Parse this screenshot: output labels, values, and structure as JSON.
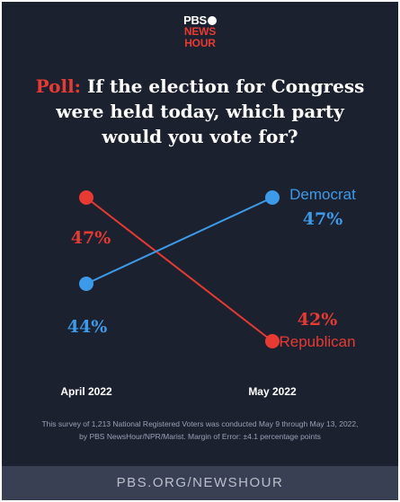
{
  "brand": {
    "line1": "PBS",
    "line2": "NEWS",
    "line3": "HOUR"
  },
  "headline": {
    "lead": "Poll:",
    "lines": [
      "If the election for Congress",
      "were held today, which party",
      "would you vote for?"
    ]
  },
  "colors": {
    "democrat": "#3d9ae8",
    "republican": "#e63a32",
    "background": "#1c2130",
    "footer": "#394053"
  },
  "chart_data": {
    "type": "line",
    "categories": [
      "April 2022",
      "May 2022"
    ],
    "series": [
      {
        "name": "Democrat",
        "values": [
          44,
          47
        ],
        "labels": [
          "44%",
          "47%"
        ]
      },
      {
        "name": "Republican",
        "values": [
          47,
          42
        ],
        "labels": [
          "47%",
          "42%"
        ]
      }
    ],
    "ylim": [
      41,
      48
    ],
    "grid": false
  },
  "footnote": [
    "This survey of 1,213 National Registered Voters was conducted May 9 through May 13, 2022,",
    "by PBS NewsHour/NPR/Marist. Margin of Error: ±4.1 percentage points"
  ],
  "footer_text": "PBS.ORG/NEWSHOUR"
}
